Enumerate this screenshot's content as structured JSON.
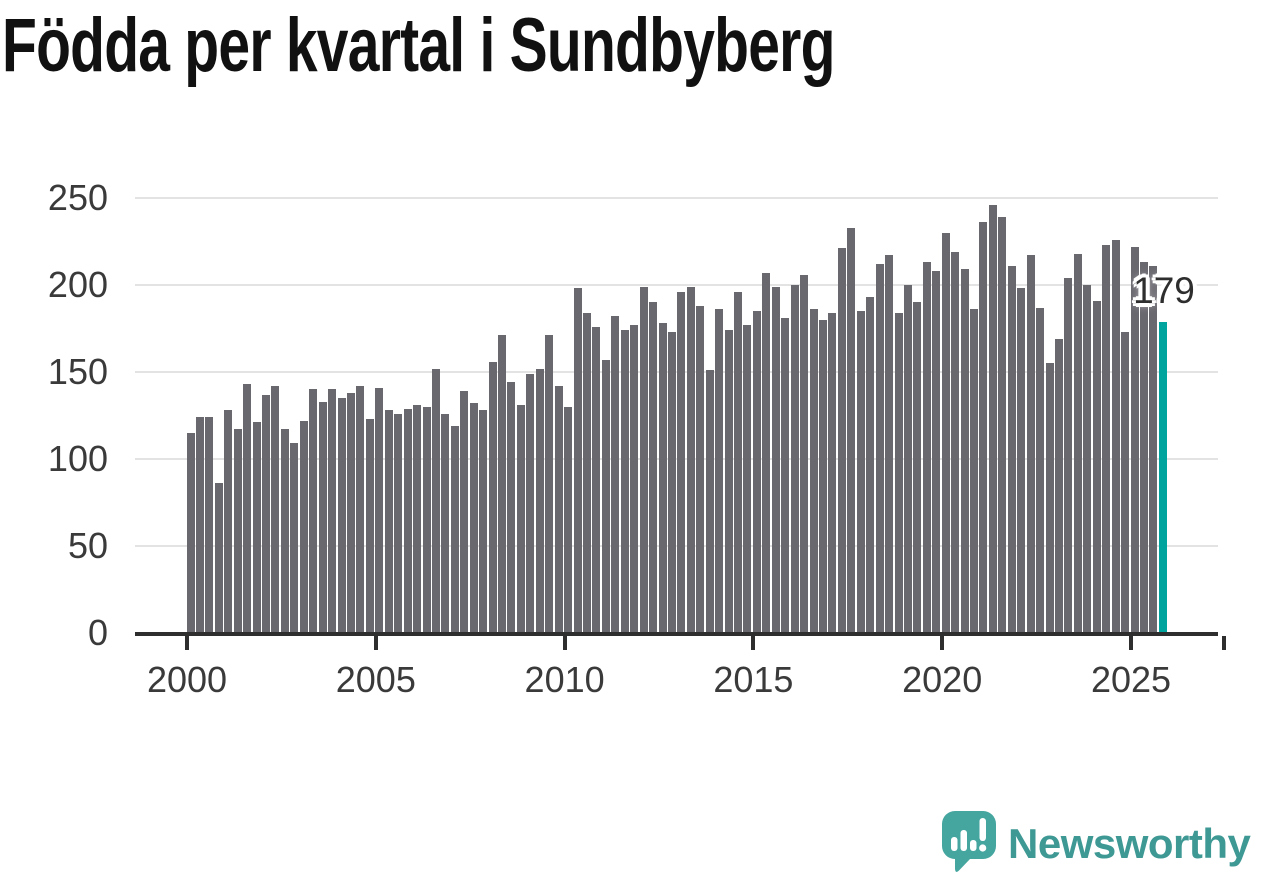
{
  "title": "Födda per kvartal i Sundbyberg",
  "chart_data": {
    "type": "bar",
    "subject": "antal födda per kvartal",
    "start_quarter": "2000 Q1",
    "end_quarter": "2025 Q4",
    "frequency": "quarterly",
    "values": [
      115,
      124,
      124,
      86,
      128,
      117,
      143,
      121,
      137,
      142,
      117,
      109,
      122,
      140,
      133,
      140,
      135,
      138,
      142,
      123,
      141,
      128,
      126,
      129,
      131,
      130,
      152,
      126,
      119,
      139,
      132,
      128,
      156,
      171,
      144,
      131,
      149,
      152,
      171,
      142,
      130,
      198,
      184,
      176,
      157,
      182,
      174,
      177,
      199,
      190,
      178,
      173,
      196,
      199,
      188,
      151,
      186,
      174,
      196,
      177,
      185,
      207,
      199,
      181,
      200,
      206,
      186,
      180,
      184,
      221,
      233,
      185,
      193,
      212,
      217,
      184,
      200,
      190,
      213,
      208,
      230,
      219,
      209,
      186,
      236,
      246,
      239,
      211,
      198,
      217,
      187,
      155,
      169,
      204,
      218,
      200,
      191,
      223,
      226,
      173,
      222,
      213,
      211,
      179
    ],
    "start_year": 2000,
    "xticks": [
      "2000",
      "2005",
      "2010",
      "2015",
      "2020",
      "2025"
    ],
    "yticks": [
      "0",
      "50",
      "100",
      "150",
      "200",
      "250"
    ],
    "ylim": [
      0,
      250
    ],
    "grid": "horizontal",
    "legend": false,
    "highlight": {
      "index": 103,
      "quarter": "2025 Q4",
      "value": 179,
      "label": "179"
    },
    "colors": {
      "bar": "#6a686f",
      "highlight": "#00a49e",
      "grid": "#e3e3e3",
      "axis": "#2e2e2e",
      "tick_text": "#3a3a3a",
      "title_text": "#111111"
    }
  },
  "branding": {
    "name": "Newsworthy",
    "badge_color": "#45a59f",
    "text_color": "#3e9894"
  }
}
